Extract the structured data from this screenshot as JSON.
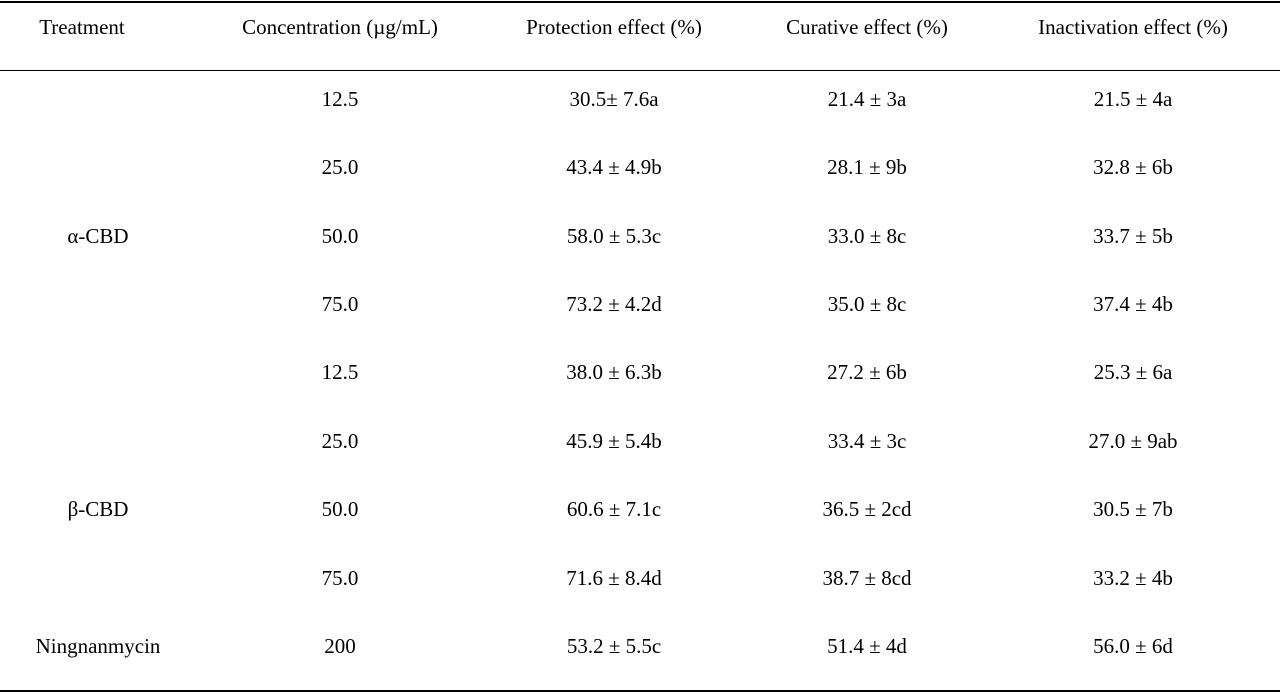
{
  "table": {
    "headers": [
      "Treatment",
      "Concentration (µg/mL)",
      "Protection effect (%)",
      "Curative effect (%)",
      "Inactivation effect (%)"
    ],
    "groups": [
      {
        "treatment": "α-CBD",
        "rows": [
          {
            "concentration": "12.5",
            "protection": "30.5± 7.6a",
            "curative": "21.4 ± 3a",
            "inactivation": "21.5 ± 4a"
          },
          {
            "concentration": "25.0",
            "protection": "43.4 ± 4.9b",
            "curative": "28.1 ± 9b",
            "inactivation": "32.8 ± 6b"
          },
          {
            "concentration": "50.0",
            "protection": "58.0 ± 5.3c",
            "curative": "33.0 ± 8c",
            "inactivation": "33.7 ± 5b"
          },
          {
            "concentration": "75.0",
            "protection": "73.2 ± 4.2d",
            "curative": "35.0 ± 8c",
            "inactivation": "37.4 ± 4b"
          }
        ]
      },
      {
        "treatment": "β-CBD",
        "rows": [
          {
            "concentration": "12.5",
            "protection": "38.0 ± 6.3b",
            "curative": "27.2 ± 6b",
            "inactivation": "25.3 ± 6a"
          },
          {
            "concentration": "25.0",
            "protection": "45.9 ± 5.4b",
            "curative": "33.4 ± 3c",
            "inactivation": "27.0 ± 9ab"
          },
          {
            "concentration": "50.0",
            "protection": "60.6 ± 7.1c",
            "curative": "36.5 ± 2cd",
            "inactivation": "30.5 ± 7b"
          },
          {
            "concentration": "75.0",
            "protection": "71.6 ± 8.4d",
            "curative": "38.7 ± 8cd",
            "inactivation": "33.2 ± 4b"
          }
        ]
      },
      {
        "treatment": "Ningnanmycin",
        "rows": [
          {
            "concentration": "200",
            "protection": "53.2 ± 5.5c",
            "curative": "51.4 ± 4d",
            "inactivation": "56.0 ± 6d"
          }
        ]
      }
    ]
  }
}
